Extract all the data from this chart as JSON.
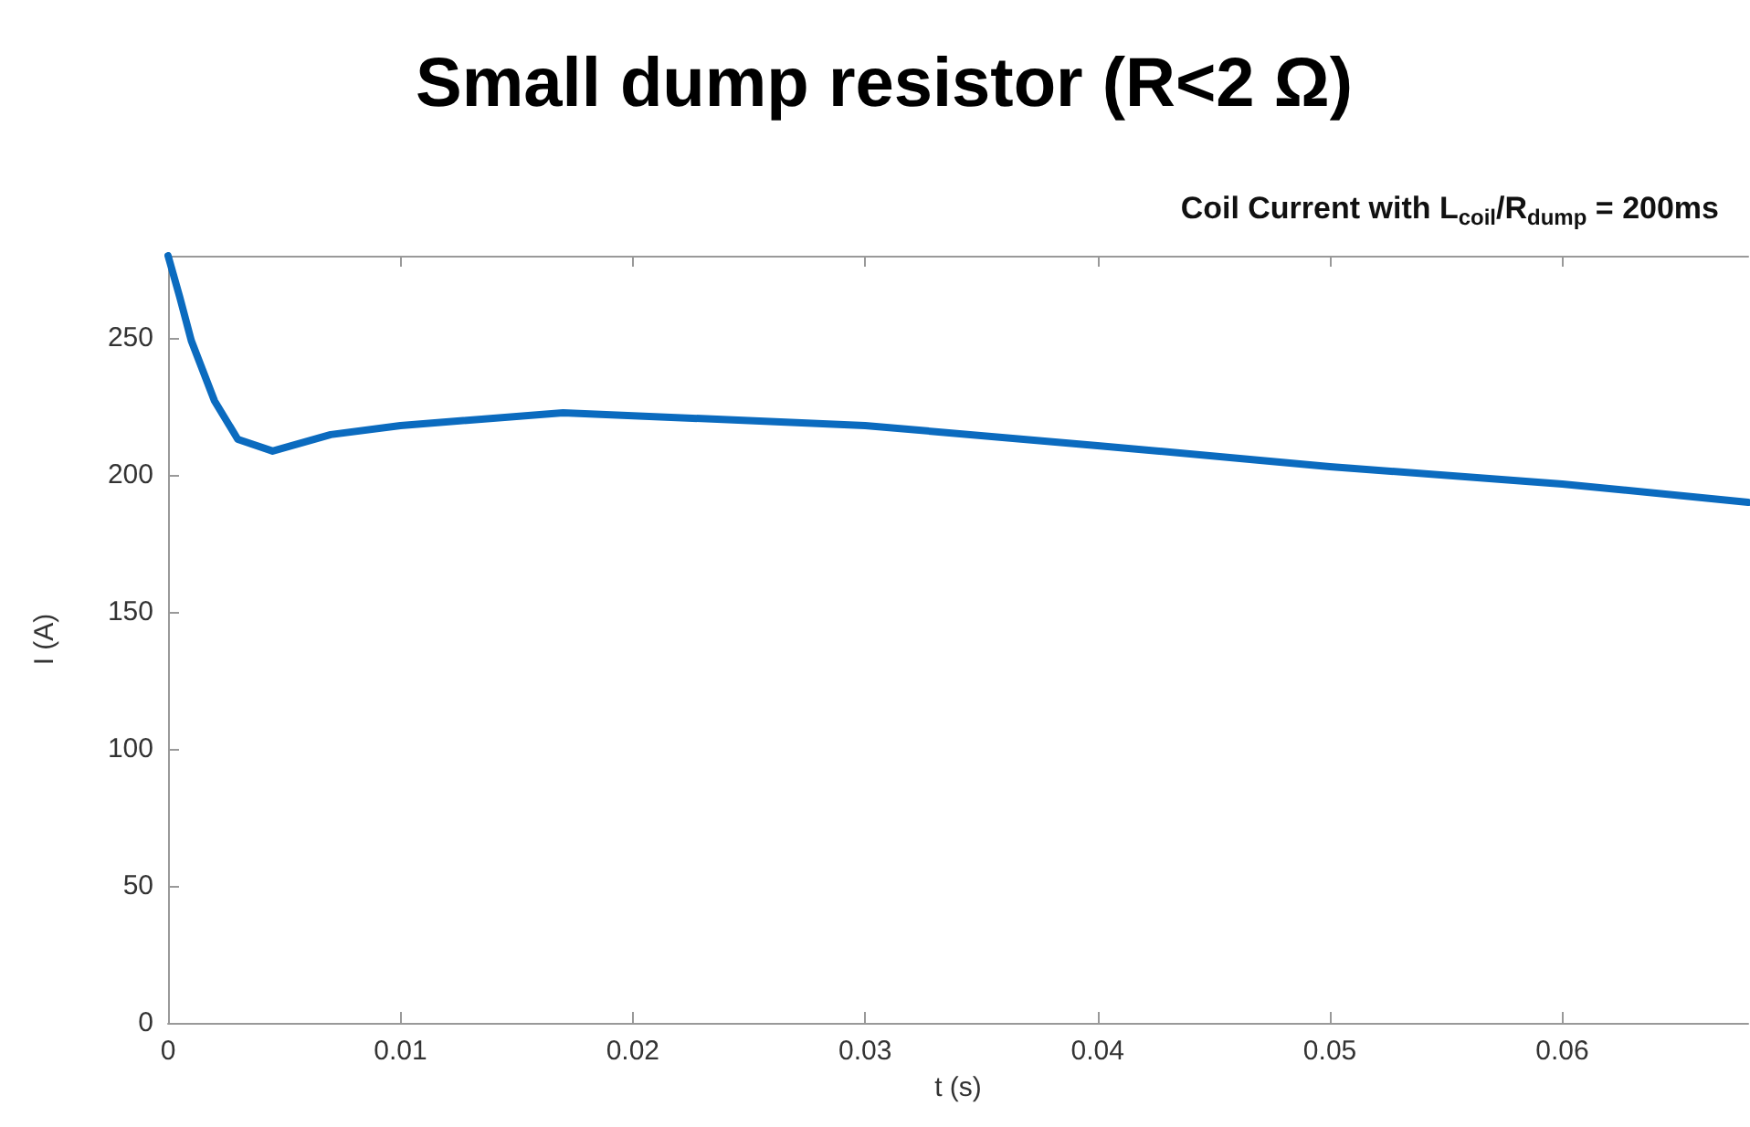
{
  "chart_data": {
    "type": "line",
    "title": "Small dump resistor (R<2 Ω)",
    "subtitle": "Coil Current with L$_{coil}$/R$_{dump}$ = 200ms",
    "xlabel": "t (s)",
    "ylabel": "I (A)",
    "x": [
      0,
      0.0005,
      0.001,
      0.002,
      0.003,
      0.0045,
      0.007,
      0.01,
      0.017,
      0.03,
      0.04,
      0.05,
      0.06,
      0.068
    ],
    "series": [
      {
        "color": "#0b6bbf",
        "values": [
          280,
          265,
          249,
          227,
          213,
          208.7,
          214.7,
          218,
          222.7,
          218,
          210.7,
          203,
          196.7,
          190
        ]
      }
    ],
    "xlim": [
      0,
      0.068
    ],
    "xticks": [
      0,
      0.01,
      0.02,
      0.03,
      0.04,
      0.05,
      0.06
    ],
    "ylim": [
      0,
      280
    ],
    "yticks": [
      0,
      50,
      100,
      150,
      200,
      250
    ],
    "grid": false,
    "marker": "none",
    "line_style": "solid"
  }
}
